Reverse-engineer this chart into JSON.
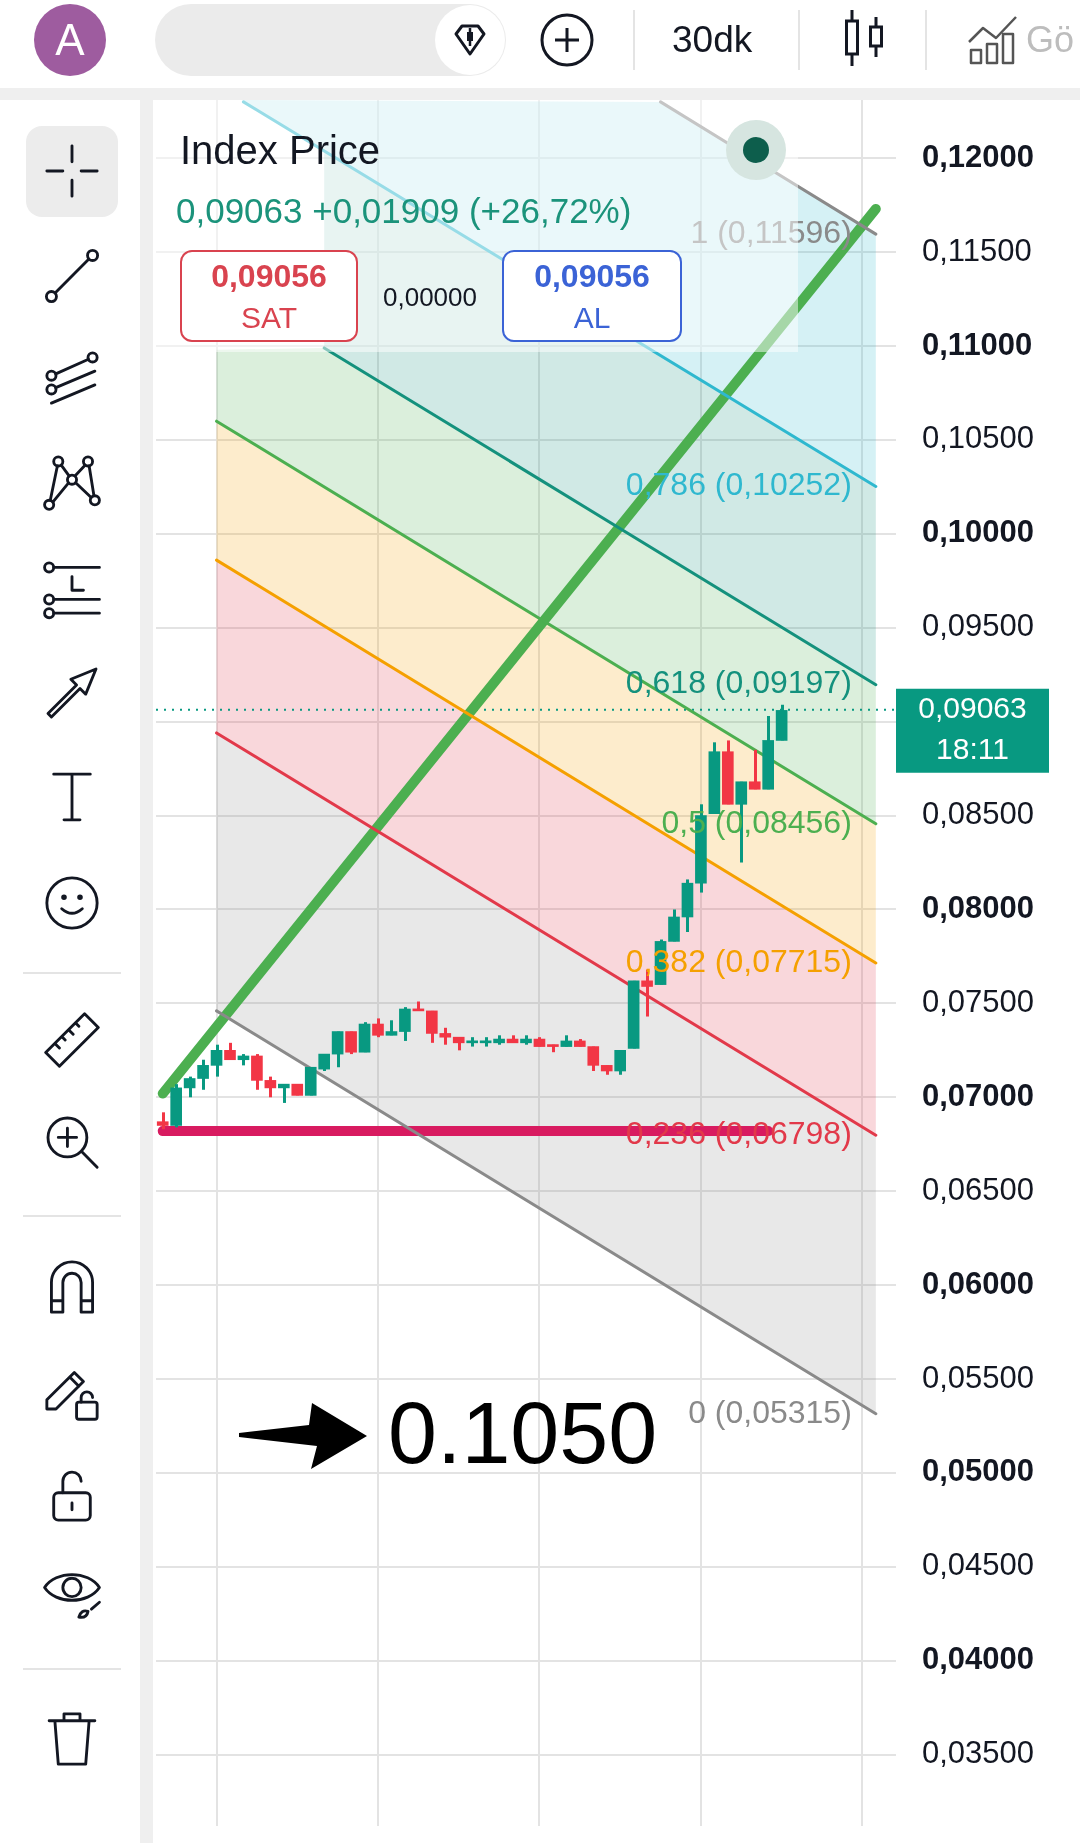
{
  "chart_data": {
    "type": "candlestick",
    "title": "Index Price",
    "subtitle": "0,09063 +0,01909 (+26,72%)",
    "categories": [
      null,
      null,
      null,
      null,
      null,
      null,
      null,
      null,
      null,
      null,
      null,
      null,
      null,
      null,
      null,
      null,
      null,
      null,
      null,
      null,
      null,
      null,
      null,
      null,
      null,
      null,
      null,
      null,
      null,
      null,
      null,
      null,
      null,
      null,
      null,
      null,
      null,
      null,
      null,
      null,
      null,
      null,
      null,
      null,
      null,
      null,
      null,
      null,
      null,
      null,
      null,
      null,
      null,
      null,
      null
    ],
    "ohlc": [
      [
        0.0687,
        0.0692,
        0.0683,
        0.0685
      ],
      [
        0.0685,
        0.0707,
        0.0684,
        0.0705
      ],
      [
        0.0705,
        0.0711,
        0.07,
        0.071
      ],
      [
        0.071,
        0.072,
        0.0704,
        0.0717
      ],
      [
        0.0717,
        0.0728,
        0.0711,
        0.0725
      ],
      [
        0.0725,
        0.0729,
        0.072,
        0.072
      ],
      [
        0.072,
        0.0723,
        0.0717,
        0.0722
      ],
      [
        0.0722,
        0.0723,
        0.0704,
        0.0709
      ],
      [
        0.0709,
        0.0711,
        0.07,
        0.0705
      ],
      [
        0.0705,
        0.0707,
        0.0697,
        0.0707
      ],
      [
        0.0707,
        0.0707,
        0.0701,
        0.0701
      ],
      [
        0.0701,
        0.0716,
        0.0701,
        0.0716
      ],
      [
        0.0715,
        0.0723,
        0.0714,
        0.0723
      ],
      [
        0.0723,
        0.0735,
        0.0716,
        0.0735
      ],
      [
        0.0735,
        0.0735,
        0.0723,
        0.0724
      ],
      [
        0.0724,
        0.074,
        0.0724,
        0.0739
      ],
      [
        0.0739,
        0.0742,
        0.0732,
        0.0733
      ],
      [
        0.0733,
        0.0741,
        0.0733,
        0.0735
      ],
      [
        0.0735,
        0.0748,
        0.073,
        0.0747
      ],
      [
        0.0747,
        0.0751,
        0.0746,
        0.0746
      ],
      [
        0.0746,
        0.0746,
        0.0729,
        0.0734
      ],
      [
        0.0734,
        0.0737,
        0.0728,
        0.0732
      ],
      [
        0.0732,
        0.0732,
        0.0725,
        0.0729
      ],
      [
        0.0729,
        0.0732,
        0.0727,
        0.073
      ],
      [
        0.0729,
        0.0732,
        0.0727,
        0.073
      ],
      [
        0.0729,
        0.0733,
        0.0728,
        0.0731
      ],
      [
        0.0731,
        0.0733,
        0.0729,
        0.0729
      ],
      [
        0.0729,
        0.0733,
        0.0728,
        0.0731
      ],
      [
        0.0731,
        0.0732,
        0.0727,
        0.0727
      ],
      [
        0.0728,
        0.0728,
        0.0724,
        0.0727
      ],
      [
        0.0727,
        0.0733,
        0.0727,
        0.073
      ],
      [
        0.073,
        0.0731,
        0.0727,
        0.0727
      ],
      [
        0.0727,
        0.0727,
        0.0714,
        0.0717
      ],
      [
        0.0717,
        0.0717,
        0.0712,
        0.0714
      ],
      [
        0.0714,
        0.0725,
        0.0712,
        0.0725
      ],
      [
        0.0726,
        0.0762,
        0.0726,
        0.0762
      ],
      [
        0.0762,
        0.0768,
        0.0743,
        0.0759
      ],
      [
        0.076,
        0.0784,
        0.076,
        0.0783
      ],
      [
        0.0783,
        0.08,
        0.0783,
        0.0796
      ],
      [
        0.0796,
        0.0816,
        0.0788,
        0.0814
      ],
      [
        0.0814,
        0.0856,
        0.0809,
        0.085
      ],
      [
        0.0851,
        0.0889,
        0.0851,
        0.0884
      ],
      [
        0.0884,
        0.089,
        0.0856,
        0.0856
      ],
      [
        0.0856,
        0.0868,
        0.0825,
        0.0868
      ],
      [
        0.0868,
        0.0885,
        0.0864,
        0.0864
      ],
      [
        0.0864,
        0.0903,
        0.0864,
        0.089
      ],
      [
        0.089,
        0.0909,
        0.089,
        0.0906
      ],
      null,
      null,
      null,
      null,
      null,
      null,
      null,
      null
    ],
    "colors": [
      "#f23645",
      "#089981",
      "#089981",
      "#089981",
      "#089981",
      "#f23645",
      "#089981",
      "#f23645",
      "#f23645",
      "#089981",
      "#f23645",
      "#089981",
      "#089981",
      "#089981",
      "#f23645",
      "#089981",
      "#f23645",
      "#089981",
      "#089981",
      "#f23645",
      "#f23645",
      "#f23645",
      "#f23645",
      "#089981",
      "#089981",
      "#089981",
      "#f23645",
      "#089981",
      "#f23645",
      "#f23645",
      "#089981",
      "#f23645",
      "#f23645",
      "#f23645",
      "#089981",
      "#089981",
      "#f23645",
      "#089981",
      "#089981",
      "#089981",
      "#089981",
      "#089981",
      "#f23645",
      "#089981",
      "#f23645",
      "#089981",
      "#089981",
      null,
      null,
      null,
      null,
      null,
      null,
      null,
      null
    ],
    "series": [
      {
        "type": "line",
        "name": "1 (0,11596)",
        "color": "#8a8a8a",
        "values": [
          null,
          null,
          null,
          null,
          null,
          null,
          null,
          null,
          null,
          null,
          null,
          null,
          null,
          null,
          null,
          null,
          null,
          null,
          null,
          null,
          null,
          null,
          null,
          null,
          null,
          null,
          null,
          null,
          null,
          null,
          null,
          null,
          null,
          null,
          null,
          null,
          null,
          0.123,
          null,
          null,
          null,
          null,
          null,
          null,
          null,
          null,
          null,
          null,
          null,
          null,
          null,
          null,
          null,
          0.11596,
          null
        ]
      },
      {
        "type": "line",
        "name": "0,786 (0,10252)",
        "color": "#2fb8cf",
        "values": [
          null,
          null,
          null,
          null,
          null,
          null,
          0.123,
          null,
          null,
          null,
          null,
          null,
          null,
          null,
          null,
          null,
          null,
          null,
          null,
          null,
          null,
          null,
          null,
          null,
          null,
          null,
          null,
          null,
          null,
          null,
          null,
          null,
          null,
          null,
          null,
          null,
          null,
          null,
          null,
          null,
          null,
          null,
          null,
          null,
          null,
          null,
          null,
          null,
          null,
          null,
          null,
          null,
          null,
          0.10252,
          null
        ],
        "lower": [
          null,
          null,
          null,
          null,
          null,
          null,
          0.123,
          null,
          null,
          null,
          null,
          null,
          null,
          null,
          null,
          null,
          null,
          null,
          null,
          null,
          null,
          null,
          null,
          null,
          null,
          null,
          null,
          null,
          null,
          null,
          null,
          null,
          null,
          null,
          null,
          null,
          null,
          0.1095,
          null,
          null,
          null,
          null,
          null,
          null,
          null,
          null,
          null,
          null,
          null,
          null,
          null,
          null,
          null,
          0.10252,
          null
        ],
        "upper": [
          null,
          null,
          null,
          null,
          null,
          null,
          0.1231,
          null,
          null,
          null,
          null,
          null,
          null,
          null,
          null,
          null,
          null,
          null,
          null,
          null,
          null,
          null,
          null,
          null,
          null,
          null,
          null,
          null,
          null,
          null,
          null,
          null,
          null,
          null,
          null,
          null,
          null,
          0.123,
          null,
          null,
          null,
          null,
          null,
          null,
          null,
          null,
          null,
          null,
          null,
          null,
          null,
          null,
          null,
          0.11596,
          null
        ]
      },
      {
        "type": "line",
        "name": "0,618 (0,09197)",
        "color": "#14917d",
        "values": [
          null,
          null,
          null,
          null,
          null,
          null,
          null,
          null,
          null,
          null,
          null,
          null,
          0.1099,
          null,
          null,
          null,
          null,
          null,
          null,
          null,
          null,
          null,
          null,
          null,
          null,
          null,
          null,
          null,
          null,
          null,
          null,
          null,
          null,
          null,
          null,
          null,
          null,
          null,
          null,
          null,
          null,
          null,
          null,
          null,
          null,
          null,
          null,
          null,
          null,
          null,
          null,
          null,
          null,
          0.09197,
          null
        ],
        "lower": [
          null,
          null,
          null,
          null,
          null,
          null,
          null,
          null,
          null,
          null,
          null,
          null,
          0.1099,
          null,
          null,
          null,
          null,
          null,
          null,
          null,
          null,
          null,
          null,
          null,
          null,
          null,
          null,
          null,
          null,
          null,
          null,
          null,
          null,
          null,
          null,
          null,
          null,
          null,
          null,
          null,
          null,
          null,
          null,
          null,
          null,
          null,
          null,
          null,
          null,
          null,
          null,
          null,
          null,
          0.09197,
          null
        ],
        "upper": [
          null,
          null,
          null,
          null,
          null,
          null,
          null,
          null,
          null,
          null,
          null,
          null,
          0.1204,
          null,
          null,
          null,
          null,
          null,
          null,
          null,
          null,
          null,
          null,
          null,
          null,
          null,
          null,
          null,
          null,
          null,
          null,
          null,
          null,
          null,
          null,
          null,
          null,
          null,
          null,
          null,
          null,
          null,
          null,
          null,
          null,
          null,
          null,
          null,
          null,
          null,
          null,
          null,
          null,
          0.10252,
          null
        ]
      },
      {
        "type": "line",
        "name": "0,5 (0,08456)",
        "color": "#4caf50",
        "values": [
          null,
          null,
          null,
          null,
          0.106,
          null,
          null,
          null,
          null,
          null,
          null,
          null,
          null,
          null,
          null,
          null,
          null,
          null,
          null,
          null,
          null,
          null,
          null,
          null,
          null,
          null,
          null,
          null,
          null,
          null,
          null,
          null,
          null,
          null,
          null,
          null,
          null,
          null,
          null,
          null,
          null,
          null,
          null,
          null,
          null,
          null,
          null,
          null,
          null,
          null,
          null,
          null,
          null,
          0.08456,
          null
        ],
        "lower": [
          null,
          null,
          null,
          null,
          0.106,
          null,
          null,
          null,
          null,
          null,
          null,
          null,
          0.1025,
          null,
          null,
          null,
          null,
          null,
          null,
          null,
          null,
          null,
          null,
          null,
          null,
          null,
          null,
          null,
          null,
          null,
          null,
          null,
          null,
          null,
          null,
          null,
          null,
          null,
          null,
          null,
          null,
          null,
          null,
          null,
          null,
          null,
          null,
          null,
          null,
          null,
          null,
          null,
          null,
          0.08456,
          null
        ],
        "upper": [
          null,
          null,
          null,
          null,
          0.1098,
          null,
          null,
          null,
          null,
          null,
          null,
          null,
          0.1099,
          null,
          null,
          null,
          null,
          null,
          null,
          null,
          null,
          null,
          null,
          null,
          null,
          null,
          null,
          null,
          null,
          null,
          null,
          null,
          null,
          null,
          null,
          null,
          null,
          null,
          null,
          null,
          null,
          null,
          null,
          null,
          null,
          null,
          null,
          null,
          null,
          null,
          null,
          null,
          null,
          0.09197,
          null
        ]
      },
      {
        "type": "line",
        "name": "0,382 (0,07715)",
        "color": "#f5a000",
        "values": [
          null,
          null,
          null,
          null,
          0.0986,
          null,
          null,
          null,
          null,
          null,
          null,
          null,
          null,
          null,
          null,
          null,
          null,
          null,
          null,
          null,
          null,
          null,
          null,
          null,
          null,
          null,
          null,
          null,
          null,
          null,
          null,
          null,
          null,
          null,
          null,
          null,
          null,
          null,
          null,
          null,
          null,
          null,
          null,
          null,
          null,
          null,
          null,
          null,
          null,
          null,
          null,
          null,
          null,
          0.07715,
          null
        ],
        "lower": [
          null,
          null,
          null,
          null,
          0.0986,
          null,
          null,
          null,
          null,
          null,
          null,
          null,
          null,
          null,
          null,
          null,
          null,
          null,
          null,
          null,
          null,
          null,
          null,
          null,
          null,
          null,
          null,
          null,
          null,
          null,
          null,
          null,
          null,
          null,
          null,
          null,
          null,
          null,
          null,
          null,
          null,
          null,
          null,
          null,
          null,
          null,
          null,
          null,
          null,
          null,
          null,
          null,
          null,
          0.07715,
          null
        ],
        "upper": [
          null,
          null,
          null,
          null,
          0.106,
          null,
          null,
          null,
          null,
          null,
          null,
          null,
          null,
          null,
          null,
          null,
          null,
          null,
          null,
          null,
          null,
          null,
          null,
          null,
          null,
          null,
          null,
          null,
          null,
          null,
          null,
          null,
          null,
          null,
          null,
          null,
          null,
          null,
          null,
          null,
          null,
          null,
          null,
          null,
          null,
          null,
          null,
          null,
          null,
          null,
          null,
          null,
          null,
          0.08456,
          null
        ]
      },
      {
        "type": "line",
        "name": "0,236 (0,06798)",
        "color": "#e2394a",
        "values": [
          null,
          null,
          null,
          null,
          0.0894,
          null,
          null,
          null,
          null,
          null,
          null,
          null,
          null,
          null,
          null,
          null,
          null,
          null,
          null,
          null,
          null,
          null,
          null,
          null,
          null,
          null,
          null,
          null,
          null,
          null,
          null,
          null,
          null,
          null,
          null,
          null,
          null,
          null,
          null,
          null,
          null,
          null,
          null,
          null,
          null,
          null,
          null,
          null,
          null,
          null,
          null,
          null,
          null,
          0.06798,
          null
        ],
        "lower": [
          null,
          null,
          null,
          null,
          0.0894,
          null,
          null,
          null,
          null,
          null,
          null,
          null,
          null,
          null,
          null,
          null,
          null,
          null,
          null,
          null,
          null,
          null,
          null,
          null,
          null,
          null,
          null,
          null,
          null,
          null,
          null,
          null,
          null,
          null,
          null,
          null,
          null,
          null,
          null,
          null,
          null,
          null,
          null,
          null,
          null,
          null,
          null,
          null,
          null,
          null,
          null,
          null,
          null,
          0.06798,
          null
        ],
        "upper": [
          null,
          null,
          null,
          null,
          0.0986,
          null,
          null,
          null,
          null,
          null,
          null,
          null,
          null,
          null,
          null,
          null,
          null,
          null,
          null,
          null,
          null,
          null,
          null,
          null,
          null,
          null,
          null,
          null,
          null,
          null,
          null,
          null,
          null,
          null,
          null,
          null,
          null,
          null,
          null,
          null,
          null,
          null,
          null,
          null,
          null,
          null,
          null,
          null,
          null,
          null,
          null,
          null,
          null,
          0.07715,
          null
        ]
      },
      {
        "type": "line",
        "name": "0 (0,05315)",
        "color": "#8a8a8a",
        "values": [
          null,
          null,
          null,
          null,
          0.0746,
          null,
          null,
          null,
          null,
          null,
          null,
          null,
          null,
          null,
          null,
          null,
          null,
          null,
          null,
          null,
          null,
          null,
          null,
          null,
          null,
          null,
          null,
          null,
          null,
          null,
          null,
          null,
          null,
          null,
          null,
          null,
          null,
          null,
          null,
          null,
          null,
          null,
          null,
          null,
          null,
          null,
          null,
          null,
          null,
          null,
          null,
          null,
          null,
          0.05315,
          null
        ],
        "lower": [
          null,
          null,
          null,
          null,
          0.0746,
          null,
          null,
          null,
          null,
          null,
          null,
          null,
          null,
          null,
          null,
          null,
          null,
          null,
          null,
          null,
          null,
          null,
          null,
          null,
          null,
          null,
          null,
          null,
          null,
          null,
          null,
          null,
          null,
          null,
          null,
          null,
          null,
          null,
          null,
          null,
          null,
          null,
          null,
          null,
          null,
          null,
          null,
          null,
          null,
          null,
          null,
          null,
          null,
          0.05315,
          null
        ],
        "upper": [
          null,
          null,
          null,
          null,
          0.0894,
          null,
          null,
          null,
          null,
          null,
          null,
          null,
          null,
          null,
          null,
          null,
          null,
          null,
          null,
          null,
          null,
          null,
          null,
          null,
          null,
          null,
          null,
          null,
          null,
          null,
          null,
          null,
          null,
          null,
          null,
          null,
          null,
          null,
          null,
          null,
          null,
          null,
          null,
          null,
          null,
          null,
          null,
          null,
          null,
          null,
          null,
          null,
          null,
          0.06798,
          null
        ]
      },
      {
        "type": "line",
        "color": "#4caf50",
        "values": [
          0.0702,
          null,
          null,
          null,
          null,
          null,
          null,
          null,
          null,
          null,
          null,
          null,
          null,
          null,
          null,
          null,
          null,
          null,
          null,
          null,
          null,
          null,
          null,
          null,
          null,
          null,
          null,
          null,
          null,
          null,
          null,
          null,
          null,
          null,
          null,
          null,
          null,
          null,
          null,
          null,
          null,
          null,
          null,
          null,
          null,
          null,
          null,
          null,
          null,
          null,
          null,
          null,
          null,
          0.1173,
          null
        ]
      },
      {
        "type": "line",
        "color": "#d81b60",
        "values": [
          0.0682,
          null,
          null,
          null,
          null,
          null,
          null,
          null,
          null,
          null,
          null,
          null,
          null,
          null,
          null,
          null,
          null,
          null,
          null,
          null,
          null,
          null,
          null,
          null,
          null,
          null,
          null,
          null,
          null,
          null,
          null,
          null,
          null,
          null,
          null,
          null,
          null,
          null,
          null,
          null,
          null,
          null,
          null,
          null,
          null,
          0.0682,
          null,
          null,
          null,
          null,
          null,
          null,
          null,
          null,
          null
        ]
      }
    ],
    "ref_lines": [
      {
        "axis": "y",
        "value": 0.09063,
        "label": "0,09063 18:11",
        "color": "#089981",
        "line_style": "dotted"
      }
    ],
    "ylim": [
      0.0312,
      0.1231
    ],
    "yticks": [
      {
        "value": 0.035,
        "label": "0,03500"
      },
      {
        "value": 0.04,
        "label": "0,04000"
      },
      {
        "value": 0.045,
        "label": "0,04500"
      },
      {
        "value": 0.05,
        "label": "0,05000"
      },
      {
        "value": 0.055,
        "label": "0,05500"
      },
      {
        "value": 0.06,
        "label": "0,06000"
      },
      {
        "value": 0.065,
        "label": "0,06500"
      },
      {
        "value": 0.07,
        "label": "0,07000"
      },
      {
        "value": 0.075,
        "label": "0,07500"
      },
      {
        "value": 0.08,
        "label": "0,08000"
      },
      {
        "value": 0.085,
        "label": "0,08500"
      },
      {
        "value": 0.09,
        "label": null
      },
      {
        "value": 0.095,
        "label": "0,09500"
      },
      {
        "value": 0.1,
        "label": "0,10000"
      },
      {
        "value": 0.105,
        "label": "0,10500"
      },
      {
        "value": 0.11,
        "label": "0,11000"
      },
      {
        "value": 0.115,
        "label": "0,11500"
      },
      {
        "value": 0.12,
        "label": "0,12000"
      }
    ],
    "grid": true,
    "annotations": [
      "0,09056",
      "SAT",
      "0,00000",
      "0,09056",
      "AL",
      "0.1050",
      "A",
      "30dk",
      "Gö"
    ]
  }
}
